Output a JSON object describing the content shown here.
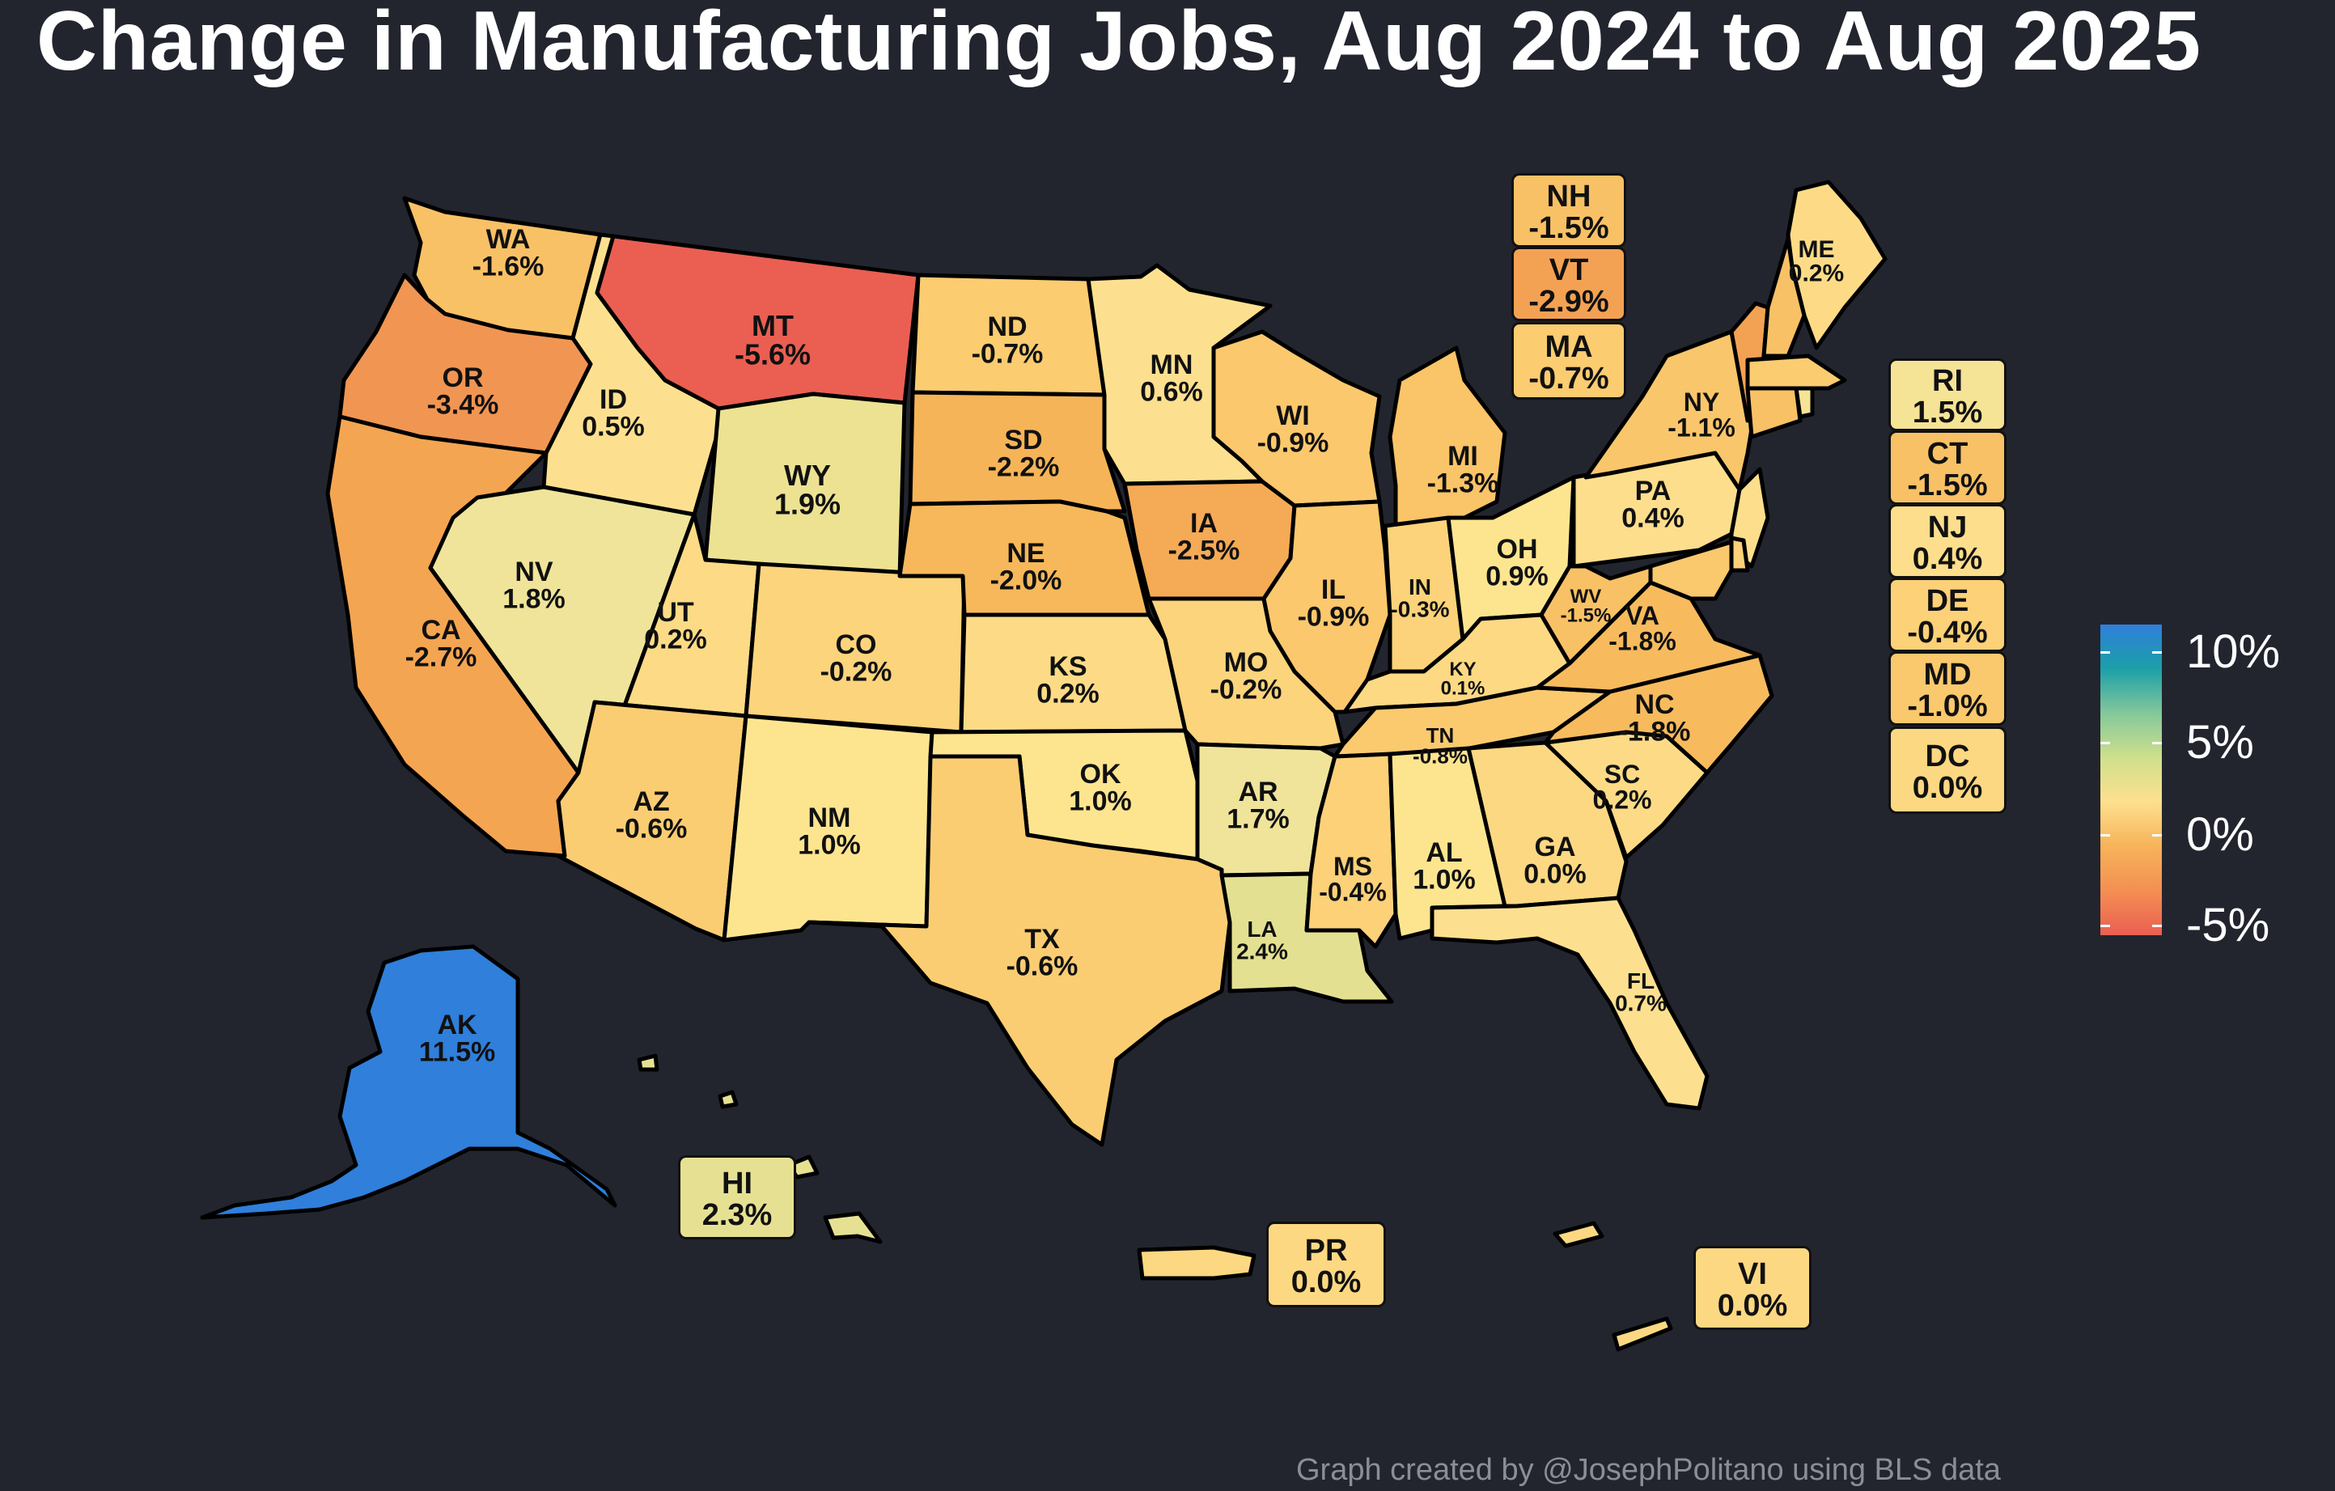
{
  "title": "Change in Manufacturing Jobs, Aug 2024 to Aug 2025",
  "credit": "Graph created by @JosephPolitano using BLS data",
  "legend": {
    "labels": [
      "10%",
      "5%",
      "0%",
      "-5%"
    ],
    "colors": [
      "#2f7fdb",
      "#1c9fa8",
      "#86c99a",
      "#cfe08c",
      "#fde08f",
      "#f7b45a",
      "#f48e53",
      "#ea5f52"
    ]
  },
  "map_states": [
    {
      "abbr": "WA",
      "value": "-1.6%",
      "fill": "#f9c165"
    },
    {
      "abbr": "OR",
      "value": "-3.4%",
      "fill": "#f19552"
    },
    {
      "abbr": "CA",
      "value": "-2.7%",
      "fill": "#f4a552"
    },
    {
      "abbr": "ID",
      "value": "0.5%",
      "fill": "#fde08f"
    },
    {
      "abbr": "NV",
      "value": "1.8%",
      "fill": "#efe49a"
    },
    {
      "abbr": "MT",
      "value": "-5.6%",
      "fill": "#ea5f52"
    },
    {
      "abbr": "WY",
      "value": "1.9%",
      "fill": "#ece292"
    },
    {
      "abbr": "UT",
      "value": "0.2%",
      "fill": "#fddb86"
    },
    {
      "abbr": "AZ",
      "value": "-0.6%",
      "fill": "#fbcd72"
    },
    {
      "abbr": "CO",
      "value": "-0.2%",
      "fill": "#fcd47c"
    },
    {
      "abbr": "NM",
      "value": "1.0%",
      "fill": "#fde590"
    },
    {
      "abbr": "ND",
      "value": "-0.7%",
      "fill": "#fbcc70"
    },
    {
      "abbr": "SD",
      "value": "-2.2%",
      "fill": "#f6b458"
    },
    {
      "abbr": "NE",
      "value": "-2.0%",
      "fill": "#f6b85a"
    },
    {
      "abbr": "KS",
      "value": "0.2%",
      "fill": "#fddb86"
    },
    {
      "abbr": "OK",
      "value": "1.0%",
      "fill": "#fde590"
    },
    {
      "abbr": "TX",
      "value": "-0.6%",
      "fill": "#fbcd72"
    },
    {
      "abbr": "MN",
      "value": "0.6%",
      "fill": "#fde08f"
    },
    {
      "abbr": "IA",
      "value": "-2.5%",
      "fill": "#f5aa55"
    },
    {
      "abbr": "MO",
      "value": "-0.2%",
      "fill": "#fcd47c"
    },
    {
      "abbr": "AR",
      "value": "1.7%",
      "fill": "#efe49a"
    },
    {
      "abbr": "LA",
      "value": "2.4%",
      "fill": "#e4e091"
    },
    {
      "abbr": "WI",
      "value": "-0.9%",
      "fill": "#fbc86d"
    },
    {
      "abbr": "IL",
      "value": "-0.9%",
      "fill": "#fbc86d"
    },
    {
      "abbr": "MI",
      "value": "-1.3%",
      "fill": "#fac468"
    },
    {
      "abbr": "IN",
      "value": "-0.3%",
      "fill": "#fcd37a"
    },
    {
      "abbr": "OH",
      "value": "0.9%",
      "fill": "#fde590"
    },
    {
      "abbr": "KY",
      "value": "0.1%",
      "fill": "#fdd984"
    },
    {
      "abbr": "TN",
      "value": "-0.8%",
      "fill": "#fbca6f"
    },
    {
      "abbr": "MS",
      "value": "-0.4%",
      "fill": "#fcd178"
    },
    {
      "abbr": "AL",
      "value": "1.0%",
      "fill": "#fde590"
    },
    {
      "abbr": "GA",
      "value": "0.0%",
      "fill": "#fdd882"
    },
    {
      "abbr": "FL",
      "value": "0.7%",
      "fill": "#fde08f"
    },
    {
      "abbr": "SC",
      "value": "0.2%",
      "fill": "#fddb86"
    },
    {
      "abbr": "NC",
      "value": "-1.8%",
      "fill": "#f7bb5e"
    },
    {
      "abbr": "VA",
      "value": "-1.8%",
      "fill": "#f7bb5e"
    },
    {
      "abbr": "WV",
      "value": "-1.5%",
      "fill": "#f9c165"
    },
    {
      "abbr": "PA",
      "value": "0.4%",
      "fill": "#fdde8c"
    },
    {
      "abbr": "NY",
      "value": "-1.1%",
      "fill": "#fac66b"
    },
    {
      "abbr": "ME",
      "value": "0.2%",
      "fill": "#fddb86"
    },
    {
      "abbr": "AK",
      "value": "11.5%",
      "fill": "#2f7fdb"
    }
  ],
  "boxes": [
    {
      "abbr": "NH",
      "value": "-1.5%",
      "fill": "#f9c165"
    },
    {
      "abbr": "VT",
      "value": "-2.9%",
      "fill": "#f3a253"
    },
    {
      "abbr": "MA",
      "value": "-0.7%",
      "fill": "#fbcc70"
    },
    {
      "abbr": "RI",
      "value": "1.5%",
      "fill": "#f5e396"
    },
    {
      "abbr": "CT",
      "value": "-1.5%",
      "fill": "#f9c165"
    },
    {
      "abbr": "NJ",
      "value": "0.4%",
      "fill": "#fdde8c"
    },
    {
      "abbr": "DE",
      "value": "-0.4%",
      "fill": "#fcd178"
    },
    {
      "abbr": "MD",
      "value": "-1.0%",
      "fill": "#fac86d"
    },
    {
      "abbr": "DC",
      "value": "0.0%",
      "fill": "#fdd882"
    },
    {
      "abbr": "HI",
      "value": "2.3%",
      "fill": "#e6e192"
    },
    {
      "abbr": "PR",
      "value": "0.0%",
      "fill": "#fdd882"
    },
    {
      "abbr": "VI",
      "value": "0.0%",
      "fill": "#fdd882"
    }
  ]
}
